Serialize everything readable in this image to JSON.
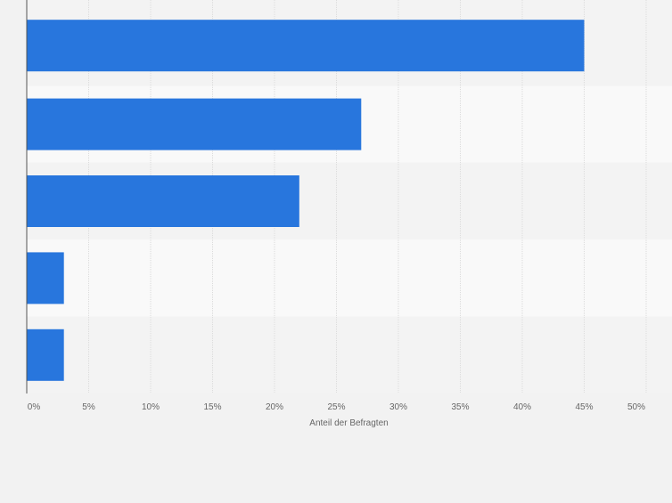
{
  "chart_data": {
    "type": "bar",
    "orientation": "horizontal",
    "categories": [
      "",
      "",
      "",
      "",
      ""
    ],
    "values": [
      45,
      27,
      22,
      3,
      3
    ],
    "xlabel": "Anteil der Befragten",
    "ylabel": "",
    "xlim": [
      0,
      50
    ],
    "xticks": [
      0,
      5,
      10,
      15,
      20,
      25,
      30,
      35,
      40,
      45,
      50
    ],
    "xtick_labels": [
      "0%",
      "5%",
      "10%",
      "15%",
      "20%",
      "25%",
      "30%",
      "35%",
      "40%",
      "45%",
      "50%"
    ],
    "grid": true,
    "legend": "none",
    "colors": {
      "bar": "#2876dd",
      "band_dark": "#f3f3f3",
      "band_light": "#f9f9f9",
      "grid": "#dcdcdc",
      "axis": "#555555",
      "tick_text": "#666666",
      "page_background": "#f2f2f2"
    }
  }
}
